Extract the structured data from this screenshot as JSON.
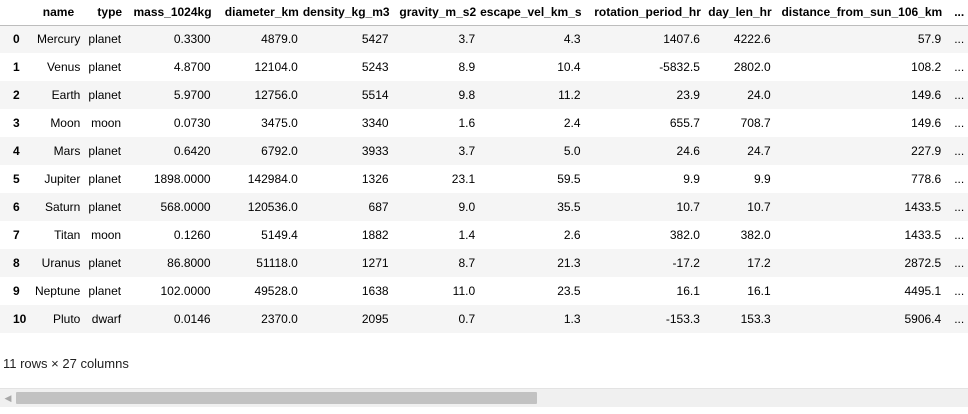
{
  "table": {
    "index_header": "",
    "columns": [
      "name",
      "type",
      "mass_1024kg",
      "diameter_km",
      "density_kg_m3",
      "gravity_m_s2",
      "escape_vel_km_s",
      "rotation_period_hr",
      "day_len_hr",
      "distance_from_sun_106_km",
      "..."
    ],
    "rows": [
      {
        "index": "0",
        "cells": [
          "Mercury",
          "planet",
          "0.3300",
          "4879.0",
          "5427",
          "3.7",
          "4.3",
          "1407.6",
          "4222.6",
          "57.9",
          "..."
        ]
      },
      {
        "index": "1",
        "cells": [
          "Venus",
          "planet",
          "4.8700",
          "12104.0",
          "5243",
          "8.9",
          "10.4",
          "-5832.5",
          "2802.0",
          "108.2",
          "..."
        ]
      },
      {
        "index": "2",
        "cells": [
          "Earth",
          "planet",
          "5.9700",
          "12756.0",
          "5514",
          "9.8",
          "11.2",
          "23.9",
          "24.0",
          "149.6",
          "..."
        ]
      },
      {
        "index": "3",
        "cells": [
          "Moon",
          "moon",
          "0.0730",
          "3475.0",
          "3340",
          "1.6",
          "2.4",
          "655.7",
          "708.7",
          "149.6",
          "..."
        ]
      },
      {
        "index": "4",
        "cells": [
          "Mars",
          "planet",
          "0.6420",
          "6792.0",
          "3933",
          "3.7",
          "5.0",
          "24.6",
          "24.7",
          "227.9",
          "..."
        ]
      },
      {
        "index": "5",
        "cells": [
          "Jupiter",
          "planet",
          "1898.0000",
          "142984.0",
          "1326",
          "23.1",
          "59.5",
          "9.9",
          "9.9",
          "778.6",
          "..."
        ]
      },
      {
        "index": "6",
        "cells": [
          "Saturn",
          "planet",
          "568.0000",
          "120536.0",
          "687",
          "9.0",
          "35.5",
          "10.7",
          "10.7",
          "1433.5",
          "..."
        ]
      },
      {
        "index": "7",
        "cells": [
          "Titan",
          "moon",
          "0.1260",
          "5149.4",
          "1882",
          "1.4",
          "2.6",
          "382.0",
          "382.0",
          "1433.5",
          "..."
        ]
      },
      {
        "index": "8",
        "cells": [
          "Uranus",
          "planet",
          "86.8000",
          "51118.0",
          "1271",
          "8.7",
          "21.3",
          "-17.2",
          "17.2",
          "2872.5",
          "..."
        ]
      },
      {
        "index": "9",
        "cells": [
          "Neptune",
          "planet",
          "102.0000",
          "49528.0",
          "1638",
          "11.0",
          "23.5",
          "16.1",
          "16.1",
          "4495.1",
          "..."
        ]
      },
      {
        "index": "10",
        "cells": [
          "Pluto",
          "dwarf",
          "0.0146",
          "2370.0",
          "2095",
          "0.7",
          "1.3",
          "-153.3",
          "153.3",
          "5906.4",
          "..."
        ]
      }
    ]
  },
  "shape_text": "11 rows × 27 columns",
  "scrollbar": {
    "left_arrow_icon": "triangle-left-icon",
    "left_arrow_glyph": "◀",
    "scroll_position_fraction": 0.0,
    "visible_fraction": 0.55
  }
}
